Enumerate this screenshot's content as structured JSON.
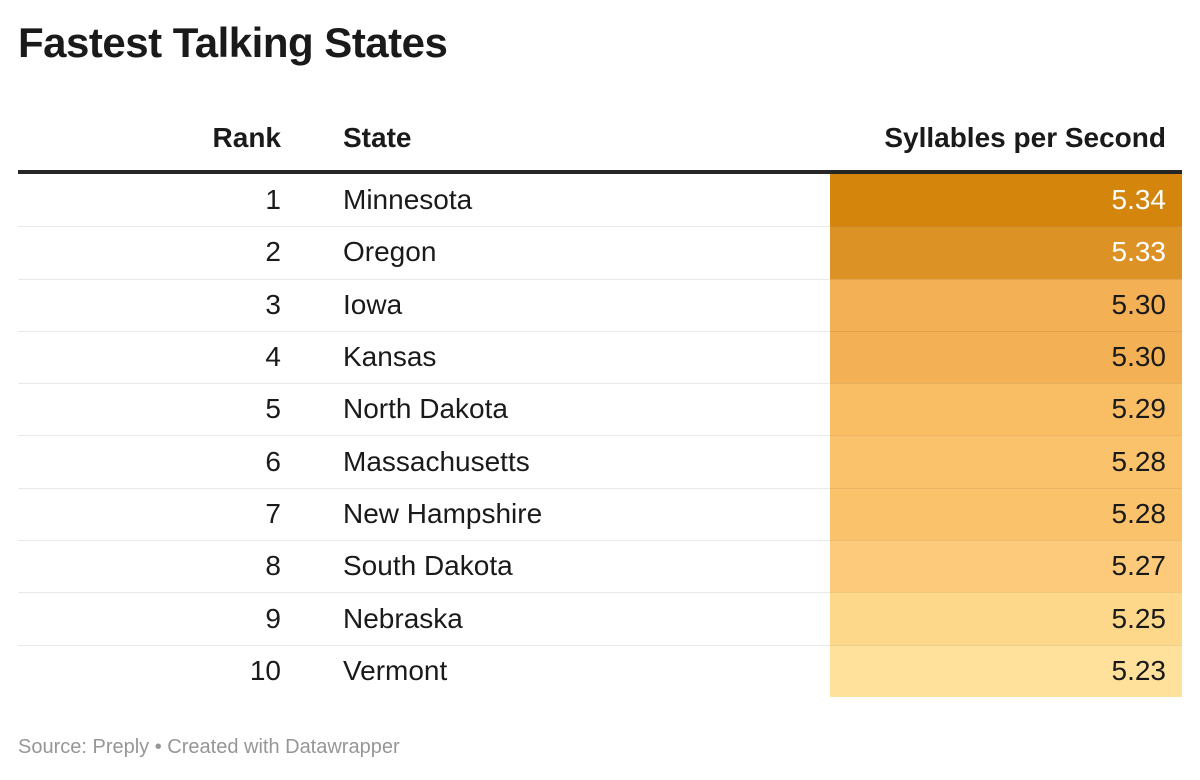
{
  "title": "Fastest Talking States",
  "header": {
    "rank": "Rank",
    "state": "State",
    "value": "Syllables per Second"
  },
  "footer": "Source: Preply • Created with Datawrapper",
  "colors": {
    "header_rule": "#262626",
    "row_divider": "#E9E9E9",
    "title_text": "#1A1A1A",
    "cell_dark_text": "#1A1A1A",
    "footer_text": "#969696"
  },
  "chart_data": {
    "type": "table",
    "title": "Fastest Talking States",
    "columns": [
      "Rank",
      "State",
      "Syllables per Second"
    ],
    "value_scale": "sequential orange, darker = faster",
    "value_range": [
      5.23,
      5.34
    ],
    "source": "Preply",
    "rows": [
      {
        "rank": "1",
        "state": "Minnesota",
        "value": "5.34",
        "cell_bg": "#D4860C",
        "cell_text": "#FFFFFF"
      },
      {
        "rank": "2",
        "state": "Oregon",
        "value": "5.33",
        "cell_bg": "#DD9226",
        "cell_text": "#FFFFFF"
      },
      {
        "rank": "3",
        "state": "Iowa",
        "value": "5.30",
        "cell_bg": "#F4B055",
        "cell_text": "#1A1A1A"
      },
      {
        "rank": "4",
        "state": "Kansas",
        "value": "5.30",
        "cell_bg": "#F4B055",
        "cell_text": "#1A1A1A"
      },
      {
        "rank": "5",
        "state": "North Dakota",
        "value": "5.29",
        "cell_bg": "#F9BD64",
        "cell_text": "#1A1A1A"
      },
      {
        "rank": "6",
        "state": "Massachusetts",
        "value": "5.28",
        "cell_bg": "#FBC26C",
        "cell_text": "#1A1A1A"
      },
      {
        "rank": "7",
        "state": "New Hampshire",
        "value": "5.28",
        "cell_bg": "#FBC26C",
        "cell_text": "#1A1A1A"
      },
      {
        "rank": "8",
        "state": "South Dakota",
        "value": "5.27",
        "cell_bg": "#FCCA7A",
        "cell_text": "#1A1A1A"
      },
      {
        "rank": "9",
        "state": "Nebraska",
        "value": "5.25",
        "cell_bg": "#FED88A",
        "cell_text": "#1A1A1A"
      },
      {
        "rank": "10",
        "state": "Vermont",
        "value": "5.23",
        "cell_bg": "#FFE19B",
        "cell_text": "#1A1A1A"
      }
    ]
  }
}
